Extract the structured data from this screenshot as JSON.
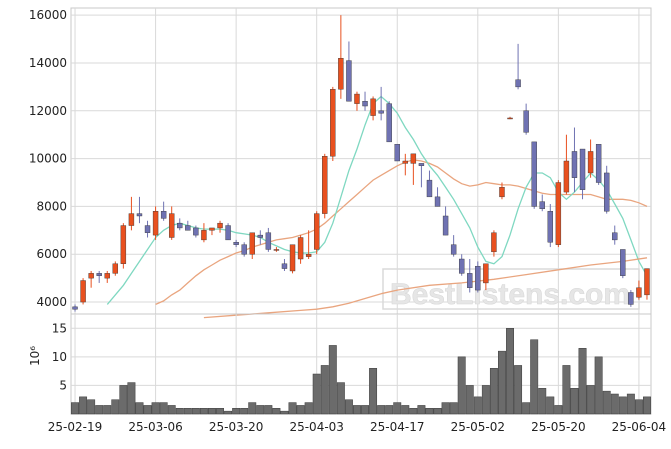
{
  "chart_data": [
    {
      "type": "candlestick",
      "y_ticks": [
        "16000",
        "14000",
        "12000",
        "10000",
        "8000",
        "6000",
        "4000"
      ],
      "ylim": [
        3500,
        16300
      ],
      "grid": true,
      "x_tick_labels": [
        "25-02-19",
        "25-03-06",
        "25-03-20",
        "25-04-03",
        "25-04-17",
        "25-05-02",
        "25-05-20",
        "25-06-04"
      ],
      "x_tick_index": [
        0,
        10,
        20,
        30,
        40,
        50,
        60,
        70
      ],
      "up_color": "#e8501f",
      "down_color": "#6f72b2",
      "ohlc": [
        [
          3800,
          3900,
          3600,
          3700
        ],
        [
          4000,
          5000,
          3900,
          4900
        ],
        [
          5000,
          5300,
          4600,
          5200
        ],
        [
          5200,
          5300,
          4800,
          5100
        ],
        [
          5000,
          5300,
          4800,
          5200
        ],
        [
          5200,
          5700,
          5100,
          5600
        ],
        [
          5600,
          7300,
          5400,
          7200
        ],
        [
          7200,
          8400,
          7000,
          7700
        ],
        [
          7700,
          8400,
          7300,
          7600
        ],
        [
          7200,
          7400,
          6700,
          6900
        ],
        [
          6800,
          8000,
          6600,
          7800
        ],
        [
          7800,
          8200,
          7400,
          7500
        ],
        [
          6700,
          8000,
          6600,
          7700
        ],
        [
          7300,
          7500,
          7000,
          7100
        ],
        [
          7200,
          7400,
          7000,
          7000
        ],
        [
          7100,
          7200,
          6700,
          6800
        ],
        [
          6600,
          7300,
          6500,
          7000
        ],
        [
          7000,
          7100,
          6800,
          7100
        ],
        [
          7100,
          7400,
          6900,
          7300
        ],
        [
          7200,
          7300,
          6600,
          6600
        ],
        [
          6500,
          6600,
          6300,
          6400
        ],
        [
          6400,
          6500,
          5900,
          6000
        ],
        [
          6000,
          6900,
          5800,
          6900
        ],
        [
          6800,
          7000,
          6400,
          6700
        ],
        [
          6900,
          7100,
          6100,
          6200
        ],
        [
          6200,
          6300,
          6100,
          6200
        ],
        [
          5600,
          5800,
          5300,
          5400
        ],
        [
          5300,
          6400,
          5200,
          6400
        ],
        [
          5800,
          6800,
          5600,
          6700
        ],
        [
          5900,
          7000,
          5800,
          6000
        ],
        [
          6200,
          7800,
          6000,
          7700
        ],
        [
          7700,
          10200,
          7500,
          10100
        ],
        [
          10100,
          13000,
          9900,
          12900
        ],
        [
          12900,
          16000,
          12500,
          14200
        ],
        [
          14100,
          14900,
          12400,
          12400
        ],
        [
          12300,
          12800,
          12000,
          12700
        ],
        [
          12400,
          12800,
          12000,
          12200
        ],
        [
          11800,
          12600,
          11600,
          12500
        ],
        [
          12000,
          13000,
          11600,
          11900
        ],
        [
          12300,
          12400,
          10700,
          10700
        ],
        [
          10600,
          10600,
          9900,
          9900
        ],
        [
          9800,
          10200,
          9300,
          9900
        ],
        [
          9800,
          10200,
          8900,
          10200
        ],
        [
          9800,
          9800,
          8800,
          9700
        ],
        [
          9100,
          9500,
          8400,
          8400
        ],
        [
          8400,
          8800,
          8000,
          8000
        ],
        [
          7600,
          8000,
          6800,
          6800
        ],
        [
          6400,
          6800,
          5900,
          6000
        ],
        [
          5800,
          6000,
          5100,
          5200
        ],
        [
          5200,
          5800,
          4400,
          4600
        ],
        [
          5500,
          5700,
          4400,
          4500
        ],
        [
          4800,
          5500,
          4500,
          5600
        ],
        [
          6100,
          7000,
          5900,
          6900
        ],
        [
          8400,
          9000,
          8300,
          8800
        ],
        [
          11700,
          11750,
          11650,
          11700
        ],
        [
          13300,
          14800,
          12900,
          13000
        ],
        [
          12000,
          12300,
          11000,
          11100
        ],
        [
          10700,
          10700,
          7900,
          8000
        ],
        [
          8200,
          8500,
          7800,
          7900
        ],
        [
          7800,
          8100,
          6300,
          6500
        ],
        [
          6400,
          9100,
          6300,
          9000
        ],
        [
          8600,
          11000,
          8500,
          9900
        ],
        [
          10300,
          11300,
          8600,
          9200
        ],
        [
          10400,
          10400,
          8300,
          8700
        ],
        [
          9400,
          10800,
          9200,
          10300
        ],
        [
          10600,
          10600,
          8900,
          9000
        ],
        [
          9400,
          9700,
          7700,
          7800
        ],
        [
          6900,
          7200,
          6400,
          6600
        ],
        [
          6200,
          6200,
          5000,
          5100
        ],
        [
          4400,
          4500,
          3800,
          3900
        ],
        [
          4200,
          4900,
          4100,
          4600
        ],
        [
          4300,
          5400,
          4100,
          5400
        ]
      ],
      "ma_short": [
        null,
        null,
        null,
        null,
        3900,
        4300,
        4700,
        5200,
        5700,
        6200,
        6700,
        7000,
        7200,
        7300,
        7200,
        7100,
        7050,
        7050,
        7050,
        7000,
        6900,
        6850,
        6800,
        6700,
        6500,
        6350,
        6200,
        6100,
        6050,
        6050,
        6100,
        6500,
        7300,
        8400,
        9500,
        10400,
        11400,
        12300,
        12600,
        12300,
        11900,
        11300,
        10800,
        10200,
        9700,
        9300,
        8800,
        8300,
        7700,
        7100,
        6300,
        5700,
        5600,
        5900,
        6800,
        7900,
        8800,
        9400,
        9400,
        9200,
        8600,
        8300,
        8600,
        9000,
        9400,
        9100,
        8700,
        8100,
        7500,
        6600,
        5700,
        5100
      ],
      "ma_mid": [
        null,
        null,
        null,
        null,
        null,
        null,
        null,
        null,
        null,
        null,
        3900,
        4050,
        4300,
        4500,
        4800,
        5100,
        5350,
        5550,
        5750,
        5900,
        6050,
        6150,
        6300,
        6400,
        6500,
        6600,
        6650,
        6700,
        6800,
        6900,
        7050,
        7300,
        7600,
        7900,
        8200,
        8500,
        8800,
        9100,
        9300,
        9500,
        9700,
        9850,
        9950,
        9900,
        9800,
        9650,
        9400,
        9150,
        8950,
        8850,
        8900,
        9000,
        8950,
        8900,
        8900,
        8850,
        8750,
        8650,
        8550,
        8500,
        8500,
        8500,
        8500,
        8500,
        8500,
        8400,
        8300,
        8300,
        8300,
        8250,
        8150,
        8000
      ],
      "ma_long": [
        null,
        null,
        null,
        null,
        null,
        null,
        null,
        null,
        null,
        null,
        null,
        null,
        null,
        null,
        null,
        null,
        null,
        null,
        null,
        null,
        null,
        null,
        null,
        null,
        null,
        null,
        null,
        null,
        null,
        null,
        null,
        null,
        null,
        null,
        null,
        null,
        null,
        null,
        null,
        null,
        null,
        null,
        null,
        null,
        null,
        null,
        null,
        null,
        null,
        null,
        null,
        null,
        null,
        null,
        null,
        null,
        null,
        null,
        null,
        null,
        null,
        null,
        null,
        null,
        null,
        null,
        null,
        null,
        null,
        null,
        null,
        null
      ],
      "ma_long_points": [
        [
          16,
          3350
        ],
        [
          20,
          3450
        ],
        [
          24,
          3550
        ],
        [
          28,
          3650
        ],
        [
          30,
          3700
        ],
        [
          32,
          3800
        ],
        [
          34,
          3950
        ],
        [
          36,
          4150
        ],
        [
          38,
          4350
        ],
        [
          40,
          4500
        ],
        [
          44,
          4700
        ],
        [
          48,
          4800
        ],
        [
          52,
          4950
        ],
        [
          56,
          5150
        ],
        [
          60,
          5350
        ],
        [
          64,
          5550
        ],
        [
          68,
          5700
        ],
        [
          71,
          5850
        ]
      ]
    },
    {
      "type": "bar",
      "ylabel": "10⁶",
      "y_ticks": [
        "15",
        "10",
        "5"
      ],
      "ylim": [
        0,
        17.5
      ],
      "volume": [
        2,
        3,
        2.5,
        1.5,
        1.5,
        2.5,
        5,
        5.5,
        2,
        1.5,
        2,
        2,
        1.5,
        1,
        1,
        1,
        1,
        1,
        1,
        0.5,
        1,
        1,
        2,
        1.5,
        1.5,
        1,
        0.5,
        2,
        1.5,
        2,
        7,
        8.5,
        12,
        5.5,
        2.5,
        1.5,
        1.5,
        8,
        1.5,
        1.5,
        2,
        1.5,
        1,
        1.5,
        1,
        1,
        2,
        2,
        10,
        5,
        3,
        5,
        8,
        11,
        15,
        8.5,
        2,
        13,
        4.5,
        3,
        1.5,
        8.5,
        4.5,
        11.5,
        5,
        10,
        4,
        3.5,
        3,
        3.5,
        2.5,
        3
      ]
    }
  ],
  "watermark": "BestListens.com",
  "colors": {
    "grid": "#d9d9d9",
    "ma_short": "#7fd8c1",
    "ma_mid": "#e9a57f",
    "ma_long": "#e9a57f",
    "volume_bar": "#6b6b6b"
  }
}
